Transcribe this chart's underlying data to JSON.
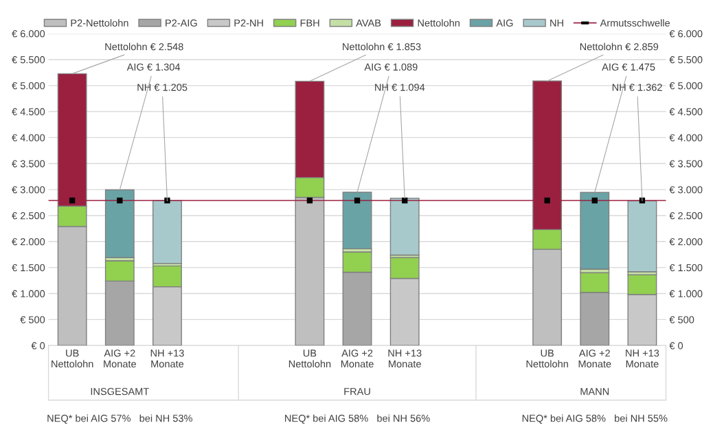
{
  "chart_data": {
    "type": "bar",
    "stacked": true,
    "categories": [
      "UB\nNettolohn",
      "AIG +2\nMonate",
      "NH +13\nMonate",
      null,
      null,
      "UB\nNettolohn",
      "AIG +2\nMonate",
      "NH +13\nMonate",
      null,
      null,
      "UB\nNettolohn",
      "AIG +2\nMonate",
      "NH +13\nMonate"
    ],
    "series": [
      {
        "name": "P2-Nettolohn",
        "color": "#bfbfbf",
        "values": [
          2290,
          null,
          null,
          null,
          null,
          2850,
          null,
          null,
          null,
          null,
          1850,
          null,
          null
        ]
      },
      {
        "name": "P2-AIG",
        "color": "#a6a6a6",
        "values": [
          null,
          1240,
          null,
          null,
          null,
          null,
          1410,
          null,
          null,
          null,
          null,
          1020,
          null
        ]
      },
      {
        "name": "P2-NH",
        "color": "#c8c8c8",
        "values": [
          null,
          null,
          1130,
          null,
          null,
          null,
          null,
          1290,
          null,
          null,
          null,
          null,
          980
        ]
      },
      {
        "name": "FBH",
        "color": "#92d050",
        "values": [
          390,
          390,
          400,
          null,
          null,
          380,
          390,
          400,
          null,
          null,
          380,
          380,
          380
        ]
      },
      {
        "name": "AVAB",
        "color": "#c5e0a5",
        "values": [
          null,
          60,
          50,
          null,
          null,
          null,
          60,
          50,
          null,
          null,
          null,
          70,
          60
        ]
      },
      {
        "name": "Nettolohn",
        "color": "#9b2040",
        "values": [
          2548,
          null,
          null,
          null,
          null,
          1853,
          null,
          null,
          null,
          null,
          2859,
          null,
          null
        ],
        "value_labels": [
          "Nettolohn € 2.548",
          null,
          null,
          null,
          null,
          "Nettolohn € 1.853",
          null,
          null,
          null,
          null,
          "Nettolohn € 2.859",
          null,
          null
        ]
      },
      {
        "name": "AIG",
        "color": "#6aa3a6",
        "values": [
          null,
          1304,
          null,
          null,
          null,
          null,
          1089,
          null,
          null,
          null,
          null,
          1475,
          null
        ],
        "value_labels": [
          null,
          "AIG € 1.304",
          null,
          null,
          null,
          null,
          "AIG € 1.089",
          null,
          null,
          null,
          null,
          "AIG € 1.475",
          null
        ]
      },
      {
        "name": "NH",
        "color": "#a7c9cc",
        "values": [
          null,
          null,
          1205,
          null,
          null,
          null,
          null,
          1094,
          null,
          null,
          null,
          null,
          1362
        ],
        "value_labels": [
          null,
          null,
          "NH € 1.205",
          null,
          null,
          null,
          null,
          "NH € 1.094",
          null,
          null,
          null,
          null,
          "NH € 1.362"
        ]
      },
      {
        "type": "scatter",
        "color": "#000000",
        "marker": "square",
        "values": [
          2790,
          2790,
          2790,
          null,
          null,
          2790,
          2790,
          2790,
          null,
          null,
          2790,
          2790,
          2790
        ]
      }
    ],
    "ref_lines": [
      {
        "axis": "y",
        "value": 2790,
        "label": "Armutsschwelle",
        "color": "#9b2040"
      }
    ],
    "ylim": [
      0,
      6000
    ],
    "yticks": [
      {
        "value": 0,
        "label": "€ 0"
      },
      {
        "value": 500,
        "label": "€ 500"
      },
      {
        "value": 1000,
        "label": "€ 1.000"
      },
      {
        "value": 1500,
        "label": "€ 1.500"
      },
      {
        "value": 2000,
        "label": "€ 2.000"
      },
      {
        "value": 2500,
        "label": "€ 2.500"
      },
      {
        "value": 3000,
        "label": "€ 3.000"
      },
      {
        "value": 3500,
        "label": "€ 3.500"
      },
      {
        "value": 4000,
        "label": "€ 4.000"
      },
      {
        "value": 4500,
        "label": "€ 4.500"
      },
      {
        "value": 5000,
        "label": "€ 5.000"
      },
      {
        "value": 5500,
        "label": "€ 5.500"
      },
      {
        "value": 6000,
        "label": "€ 6.000"
      }
    ],
    "y2lim": [
      0,
      6000
    ],
    "y2ticks": [
      {
        "value": 0,
        "label": "€ 0"
      },
      {
        "value": 500,
        "label": "€ 500"
      },
      {
        "value": 1000,
        "label": "€ 1.000"
      },
      {
        "value": 1500,
        "label": "€ 1.500"
      },
      {
        "value": 2000,
        "label": "€ 2.000"
      },
      {
        "value": 2500,
        "label": "€ 2.500"
      },
      {
        "value": 3000,
        "label": "€ 3.000"
      },
      {
        "value": 3500,
        "label": "€ 3.500"
      },
      {
        "value": 4000,
        "label": "€ 4.000"
      },
      {
        "value": 4500,
        "label": "€ 4.500"
      },
      {
        "value": 5000,
        "label": "€ 5.000"
      },
      {
        "value": 5500,
        "label": "€ 5.500"
      },
      {
        "value": 6000,
        "label": "€ 6.000"
      }
    ],
    "grid": "y",
    "legend": "top",
    "annotations": [
      "INSGESAMT",
      "FRAU",
      "MANN",
      "NEQ* bei AIG 57%   bei NH 53%",
      "NEQ* bei AIG 58%   bei NH 56%",
      "NEQ* bei AIG 58%   bei NH 55%"
    ]
  }
}
